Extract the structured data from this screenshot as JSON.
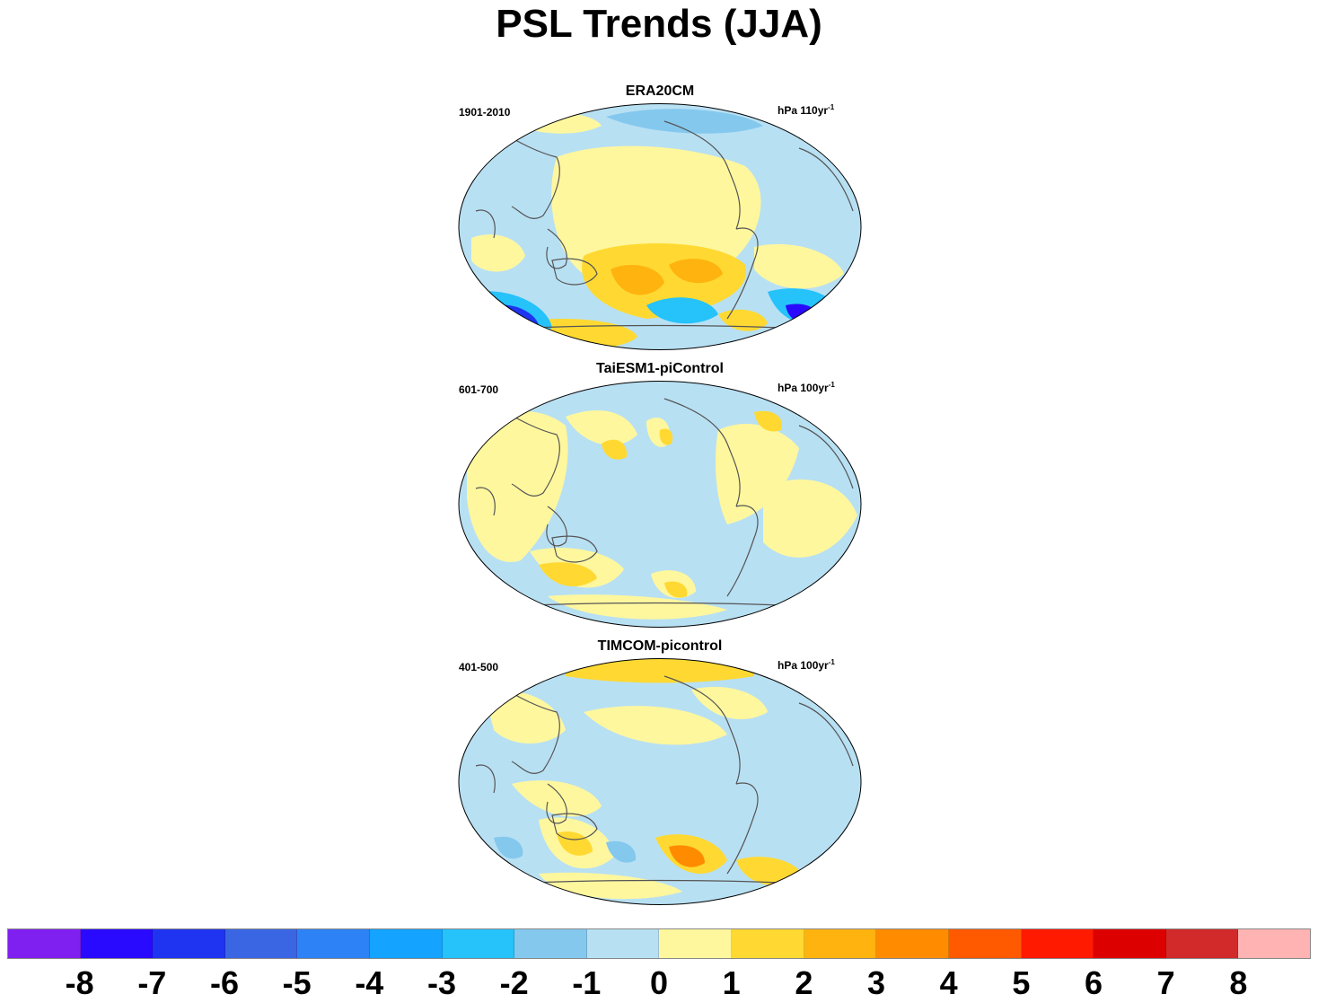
{
  "title": "PSL Trends (JJA)",
  "panels": [
    {
      "title": "ERA20CM",
      "period": "1901-2010",
      "units_base": "hPa 110yr",
      "units_exp": "-1"
    },
    {
      "title": "TaiESM1-piControl",
      "period": "601-700",
      "units_base": "hPa 100yr",
      "units_exp": "-1"
    },
    {
      "title": "TIMCOM-picontrol",
      "period": "401-500",
      "units_base": "hPa 100yr",
      "units_exp": "-1"
    }
  ],
  "colorbar": {
    "labels": [
      "-8",
      "-7",
      "-6",
      "-5",
      "-4",
      "-3",
      "-2",
      "-1",
      "0",
      "1",
      "2",
      "3",
      "4",
      "5",
      "6",
      "7",
      "8"
    ],
    "colors": [
      "#7f1ff0",
      "#2a0aff",
      "#1f34f0",
      "#3a66e3",
      "#2d82f5",
      "#14a3ff",
      "#26c2fa",
      "#84c8ee",
      "#b8e0f3",
      "#fff79e",
      "#ffd932",
      "#ffb30f",
      "#ff8c00",
      "#ff5a00",
      "#ff1a00",
      "#dd0000",
      "#d22a2a",
      "#ffb3b3"
    ]
  },
  "map": {
    "projection": "Robinson (Pacific-centered)",
    "ocean_background_color": "#b8e0f3",
    "coastline_color": "#555555"
  }
}
